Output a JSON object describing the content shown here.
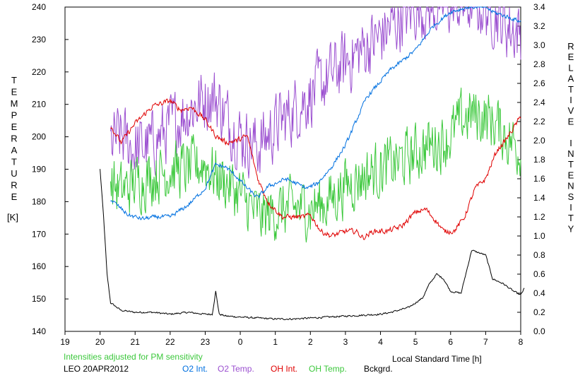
{
  "chart_data": {
    "type": "line",
    "left_axis": {
      "label": "TEMPERATURE",
      "unit": "[K]",
      "range": [
        140,
        240
      ],
      "ticks": [
        140,
        150,
        160,
        170,
        180,
        190,
        200,
        210,
        220,
        230,
        240
      ]
    },
    "right_axis": {
      "label": "RELATIVE INTENSITY",
      "range": [
        0.0,
        3.4
      ],
      "ticks": [
        "0.0",
        "0.2",
        "0.4",
        "0.6",
        "0.8",
        "1.0",
        "1.2",
        "1.4",
        "1.6",
        "1.8",
        "2.0",
        "2.2",
        "2.4",
        "2.6",
        "2.8",
        "3.0",
        "3.2",
        "3.4"
      ]
    },
    "x_axis": {
      "label": "Local Standard Time [h]",
      "tick_values": [
        19,
        20,
        21,
        22,
        23,
        24,
        25,
        26,
        27,
        28,
        29,
        30,
        31,
        32
      ],
      "tick_labels": [
        "19",
        "20",
        "21",
        "22",
        "23",
        "0",
        "1",
        "2",
        "3",
        "4",
        "5",
        "6",
        "7",
        "8"
      ]
    },
    "note": "Intensities adjusted for PM sensitivity",
    "station": "LEO 20APR2012",
    "legend": [
      {
        "name": "O2 Int.",
        "color": "#0070e0"
      },
      {
        "name": "O2 Temp.",
        "color": "#9b4fd0"
      },
      {
        "name": "OH Int.",
        "color": "#e00000"
      },
      {
        "name": "OH Temp.",
        "color": "#3cc83c"
      },
      {
        "name": "Bckgrd.",
        "color": "#000000"
      }
    ],
    "series": [
      {
        "name": "O2 Int.",
        "axis": "right",
        "color": "#0070e0",
        "noise": 0.02,
        "x": [
          20.3,
          20.5,
          20.8,
          21.2,
          21.6,
          22.0,
          22.5,
          23.0,
          23.3,
          23.6,
          23.9,
          24.2,
          24.5,
          24.8,
          25.0,
          25.3,
          25.6,
          25.9,
          26.2,
          26.6,
          27.0,
          27.3,
          27.6,
          28.0,
          28.3,
          28.5,
          29.0,
          29.5,
          30.0,
          30.5,
          31.0,
          31.2,
          31.6,
          32.0
        ],
        "y": [
          1.38,
          1.32,
          1.22,
          1.18,
          1.2,
          1.2,
          1.32,
          1.5,
          1.75,
          1.72,
          1.62,
          1.5,
          1.4,
          1.52,
          1.55,
          1.6,
          1.55,
          1.5,
          1.55,
          1.72,
          1.95,
          2.2,
          2.45,
          2.62,
          2.75,
          2.8,
          2.95,
          3.2,
          3.35,
          3.4,
          3.4,
          3.35,
          3.3,
          3.25
        ]
      },
      {
        "name": "O2 Temp.",
        "axis": "left",
        "color": "#9b4fd0",
        "noise": 9,
        "x": [
          20.3,
          20.6,
          21.0,
          21.5,
          22.0,
          22.5,
          23.0,
          23.3,
          23.6,
          24.0,
          24.5,
          25.0,
          25.5,
          26.0,
          26.5,
          27.0,
          27.5,
          28.0,
          28.5,
          29.0,
          29.5,
          30.0,
          30.5,
          31.0,
          31.3,
          31.6,
          32.0
        ],
        "y": [
          198,
          200,
          196,
          198,
          203,
          208,
          212,
          212,
          206,
          200,
          197,
          203,
          208,
          213,
          218,
          223,
          227,
          231,
          236,
          240,
          240,
          241,
          241,
          240,
          238,
          234,
          232
        ]
      },
      {
        "name": "OH Int.",
        "axis": "right",
        "color": "#e00000",
        "noise": 0.025,
        "x": [
          20.3,
          20.6,
          21.0,
          21.5,
          22.0,
          22.3,
          22.6,
          23.0,
          23.3,
          23.6,
          23.9,
          24.2,
          24.5,
          24.8,
          25.2,
          25.5,
          25.8,
          26.0,
          26.3,
          26.6,
          27.0,
          27.3,
          27.5,
          27.8,
          28.2,
          28.6,
          29.0,
          29.3,
          29.6,
          29.8,
          30.1,
          30.4,
          30.7,
          31.0,
          31.3,
          31.6,
          32.0
        ],
        "y": [
          2.15,
          1.98,
          2.18,
          2.36,
          2.42,
          2.32,
          2.35,
          2.22,
          2.05,
          1.98,
          2.0,
          2.05,
          1.6,
          1.35,
          1.2,
          1.2,
          1.2,
          1.22,
          1.05,
          1.0,
          1.05,
          1.05,
          0.98,
          1.05,
          1.05,
          1.1,
          1.25,
          1.28,
          1.15,
          1.05,
          1.05,
          1.2,
          1.5,
          1.6,
          1.88,
          2.02,
          2.25
        ]
      },
      {
        "name": "OH Temp.",
        "axis": "left",
        "color": "#3cc83c",
        "noise": 8,
        "x": [
          20.3,
          20.6,
          21.0,
          21.5,
          22.0,
          22.5,
          23.0,
          23.3,
          23.6,
          24.0,
          24.3,
          24.6,
          25.0,
          25.5,
          26.0,
          26.5,
          27.0,
          27.5,
          28.0,
          28.5,
          29.0,
          29.3,
          29.6,
          30.0,
          30.3,
          30.6,
          31.0,
          31.3,
          31.6,
          32.0
        ],
        "y": [
          186,
          183,
          186,
          188,
          190,
          190,
          192,
          188,
          186,
          182,
          178,
          175,
          177,
          178,
          178,
          180,
          185,
          188,
          190,
          192,
          195,
          197,
          198,
          200,
          205,
          207,
          206,
          204,
          200,
          196
        ]
      },
      {
        "name": "Bckgrd.",
        "axis": "right",
        "color": "#000000",
        "noise": 0.008,
        "x": [
          20.0,
          20.1,
          20.2,
          20.3,
          20.6,
          21.0,
          21.5,
          22.0,
          22.5,
          23.0,
          23.2,
          23.3,
          23.4,
          23.6,
          24.0,
          24.5,
          25.0,
          25.5,
          26.0,
          26.5,
          27.0,
          27.5,
          28.0,
          28.3,
          28.5,
          28.8,
          29.0,
          29.2,
          29.4,
          29.6,
          29.8,
          30.0,
          30.3,
          30.6,
          31.0,
          31.2,
          31.5,
          31.8,
          32.0,
          32.1
        ],
        "y": [
          1.7,
          1.2,
          0.6,
          0.3,
          0.22,
          0.2,
          0.2,
          0.18,
          0.2,
          0.18,
          0.18,
          0.42,
          0.18,
          0.16,
          0.15,
          0.14,
          0.13,
          0.13,
          0.14,
          0.15,
          0.16,
          0.17,
          0.18,
          0.2,
          0.22,
          0.25,
          0.3,
          0.35,
          0.5,
          0.6,
          0.55,
          0.42,
          0.4,
          0.85,
          0.8,
          0.55,
          0.5,
          0.42,
          0.38,
          0.45
        ]
      }
    ]
  },
  "footer": {
    "note": "Intensities adjusted for PM sensitivity",
    "station": "LEO 20APR2012",
    "xlabel": "Local Standard Time [h]"
  }
}
